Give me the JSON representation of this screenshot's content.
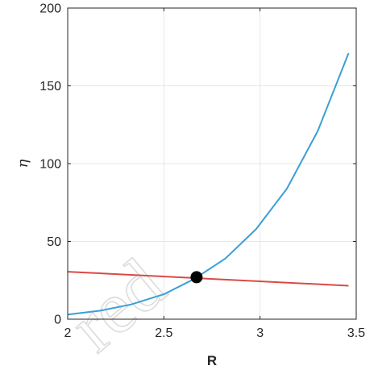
{
  "chart_data": {
    "type": "line",
    "xlabel": "R",
    "ylabel": "η",
    "xlim": [
      2,
      3.5
    ],
    "ylim": [
      0,
      200
    ],
    "xticks": [
      2,
      2.5,
      3,
      3.5
    ],
    "yticks": [
      0,
      50,
      100,
      150,
      200
    ],
    "grid": true,
    "series": [
      {
        "color": "#3a9fd6",
        "x": [
          2.0,
          2.17,
          2.33,
          2.5,
          2.66,
          2.82,
          2.98,
          3.14,
          3.3,
          3.46
        ],
        "y": [
          3,
          5.5,
          9.5,
          16,
          26,
          39,
          58,
          84,
          121,
          171
        ]
      },
      {
        "color": "#d94a46",
        "x": [
          2.0,
          3.46
        ],
        "y": [
          30.5,
          21.5
        ]
      }
    ],
    "intersection": {
      "x": 2.67,
      "y": 27,
      "color": "#000000"
    }
  },
  "watermark": {
    "text": "red"
  }
}
